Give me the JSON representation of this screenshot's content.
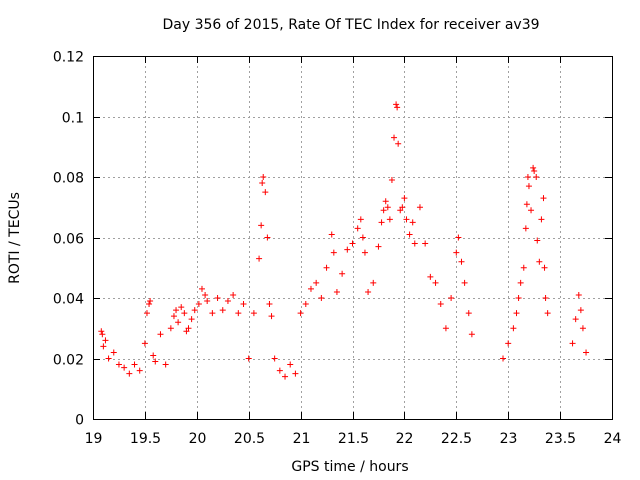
{
  "chart_data": {
    "type": "scatter",
    "title": "Day 356 of 2015, Rate Of TEC Index for receiver av39",
    "xlabel": "GPS time / hours",
    "ylabel": "ROTI / TECUs",
    "xlim": [
      19,
      24
    ],
    "ylim": [
      0,
      0.12
    ],
    "x_ticks": [
      "19",
      "19.5",
      "20",
      "20.5",
      "21",
      "21.5",
      "22",
      "22.5",
      "23",
      "23.5",
      "24"
    ],
    "y_ticks": [
      "0",
      "0.02",
      "0.04",
      "0.06",
      "0.08",
      "0.1",
      "0.12"
    ],
    "grid": true,
    "marker": "+",
    "color": "#ff0000",
    "series": [
      {
        "points": [
          [
            19.08,
            0.029
          ],
          [
            19.09,
            0.028
          ],
          [
            19.1,
            0.024
          ],
          [
            19.12,
            0.026
          ],
          [
            19.15,
            0.02
          ],
          [
            19.2,
            0.022
          ],
          [
            19.25,
            0.018
          ],
          [
            19.3,
            0.017
          ],
          [
            19.35,
            0.015
          ],
          [
            19.4,
            0.018
          ],
          [
            19.45,
            0.016
          ],
          [
            19.5,
            0.025
          ],
          [
            19.52,
            0.035
          ],
          [
            19.54,
            0.038
          ],
          [
            19.55,
            0.039
          ],
          [
            19.58,
            0.021
          ],
          [
            19.6,
            0.019
          ],
          [
            19.65,
            0.028
          ],
          [
            19.7,
            0.018
          ],
          [
            19.75,
            0.03
          ],
          [
            19.78,
            0.034
          ],
          [
            19.8,
            0.036
          ],
          [
            19.82,
            0.032
          ],
          [
            19.85,
            0.037
          ],
          [
            19.88,
            0.035
          ],
          [
            19.9,
            0.029
          ],
          [
            19.92,
            0.03
          ],
          [
            19.95,
            0.033
          ],
          [
            19.98,
            0.036
          ],
          [
            20.02,
            0.038
          ],
          [
            20.05,
            0.043
          ],
          [
            20.08,
            0.041
          ],
          [
            20.1,
            0.039
          ],
          [
            20.15,
            0.035
          ],
          [
            20.2,
            0.04
          ],
          [
            20.25,
            0.036
          ],
          [
            20.3,
            0.039
          ],
          [
            20.35,
            0.041
          ],
          [
            20.4,
            0.035
          ],
          [
            20.45,
            0.038
          ],
          [
            20.5,
            0.02
          ],
          [
            20.55,
            0.035
          ],
          [
            20.6,
            0.053
          ],
          [
            20.62,
            0.064
          ],
          [
            20.63,
            0.078
          ],
          [
            20.64,
            0.08
          ],
          [
            20.66,
            0.075
          ],
          [
            20.68,
            0.06
          ],
          [
            20.7,
            0.038
          ],
          [
            20.72,
            0.034
          ],
          [
            20.75,
            0.02
          ],
          [
            20.8,
            0.016
          ],
          [
            20.85,
            0.014
          ],
          [
            20.9,
            0.018
          ],
          [
            20.95,
            0.015
          ],
          [
            21.0,
            0.035
          ],
          [
            21.05,
            0.038
          ],
          [
            21.1,
            0.043
          ],
          [
            21.15,
            0.045
          ],
          [
            21.2,
            0.04
          ],
          [
            21.25,
            0.05
          ],
          [
            21.3,
            0.061
          ],
          [
            21.32,
            0.055
          ],
          [
            21.35,
            0.042
          ],
          [
            21.4,
            0.048
          ],
          [
            21.45,
            0.056
          ],
          [
            21.5,
            0.058
          ],
          [
            21.55,
            0.063
          ],
          [
            21.58,
            0.066
          ],
          [
            21.6,
            0.06
          ],
          [
            21.62,
            0.055
          ],
          [
            21.65,
            0.042
          ],
          [
            21.7,
            0.045
          ],
          [
            21.75,
            0.057
          ],
          [
            21.78,
            0.065
          ],
          [
            21.8,
            0.069
          ],
          [
            21.82,
            0.072
          ],
          [
            21.84,
            0.07
          ],
          [
            21.86,
            0.066
          ],
          [
            21.88,
            0.079
          ],
          [
            21.9,
            0.093
          ],
          [
            21.92,
            0.104
          ],
          [
            21.93,
            0.103
          ],
          [
            21.94,
            0.091
          ],
          [
            21.96,
            0.069
          ],
          [
            21.98,
            0.07
          ],
          [
            22.0,
            0.073
          ],
          [
            22.02,
            0.066
          ],
          [
            22.05,
            0.061
          ],
          [
            22.08,
            0.065
          ],
          [
            22.1,
            0.058
          ],
          [
            22.15,
            0.07
          ],
          [
            22.2,
            0.058
          ],
          [
            22.25,
            0.047
          ],
          [
            22.3,
            0.045
          ],
          [
            22.35,
            0.038
          ],
          [
            22.4,
            0.03
          ],
          [
            22.45,
            0.04
          ],
          [
            22.5,
            0.055
          ],
          [
            22.52,
            0.06
          ],
          [
            22.55,
            0.052
          ],
          [
            22.58,
            0.045
          ],
          [
            22.62,
            0.035
          ],
          [
            22.65,
            0.028
          ],
          [
            22.95,
            0.02
          ],
          [
            23.0,
            0.025
          ],
          [
            23.05,
            0.03
          ],
          [
            23.08,
            0.035
          ],
          [
            23.1,
            0.04
          ],
          [
            23.12,
            0.045
          ],
          [
            23.15,
            0.05
          ],
          [
            23.17,
            0.063
          ],
          [
            23.18,
            0.071
          ],
          [
            23.19,
            0.08
          ],
          [
            23.2,
            0.077
          ],
          [
            23.22,
            0.069
          ],
          [
            23.24,
            0.083
          ],
          [
            23.25,
            0.082
          ],
          [
            23.27,
            0.08
          ],
          [
            23.28,
            0.059
          ],
          [
            23.3,
            0.052
          ],
          [
            23.32,
            0.066
          ],
          [
            23.34,
            0.073
          ],
          [
            23.35,
            0.05
          ],
          [
            23.36,
            0.04
          ],
          [
            23.38,
            0.035
          ],
          [
            23.62,
            0.025
          ],
          [
            23.65,
            0.033
          ],
          [
            23.68,
            0.041
          ],
          [
            23.7,
            0.036
          ],
          [
            23.72,
            0.03
          ],
          [
            23.75,
            0.022
          ]
        ]
      }
    ]
  }
}
